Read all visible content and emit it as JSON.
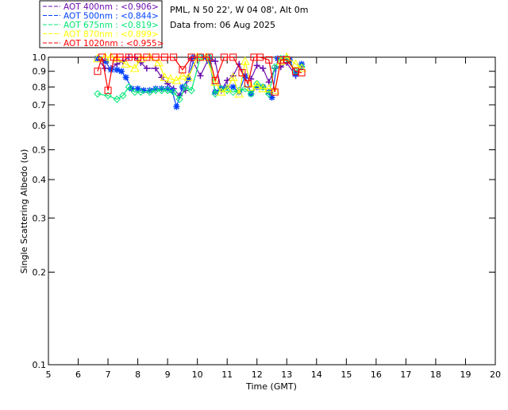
{
  "chart_data": {
    "type": "line",
    "title": "PML, N 50 22', W 04 08', Alt 0m",
    "subtitle": "Data from: 06 Aug 2025",
    "xlabel": "Time (GMT)",
    "ylabel": "Single Scattering Albedo (ω)",
    "xlim": [
      5,
      20
    ],
    "ylim": [
      0.1,
      1.0
    ],
    "yscale": "log",
    "xticks": [
      "5",
      "6",
      "7",
      "8",
      "9",
      "10",
      "11",
      "12",
      "13",
      "14",
      "15",
      "16",
      "17",
      "18",
      "19",
      "20"
    ],
    "yticks": [
      "1.0",
      "0.9",
      "0.8",
      "0.7",
      "0.6",
      "0.5",
      "0.4",
      "0.3",
      "0.2",
      "0.1"
    ],
    "legend_placement": "top-left",
    "series": [
      {
        "name": "AOT  400nm : <0.906>",
        "color": "#6a0dad",
        "marker": "plus",
        "x": [
          6.65,
          6.9,
          7.1,
          7.3,
          7.5,
          7.7,
          7.9,
          8.1,
          8.3,
          8.6,
          8.8,
          9.0,
          9.2,
          9.4,
          9.6,
          9.8,
          10.1,
          10.4,
          10.6,
          10.8,
          11.0,
          11.2,
          11.4,
          11.6,
          11.8,
          12.0,
          12.2,
          12.4,
          12.6,
          12.8,
          13.0,
          13.3,
          13.5
        ],
        "y": [
          0.99,
          0.92,
          0.92,
          0.95,
          0.97,
          1.0,
          1.0,
          0.96,
          0.92,
          0.92,
          0.86,
          0.82,
          0.79,
          0.75,
          0.78,
          0.99,
          0.87,
          1.0,
          0.97,
          0.78,
          0.84,
          0.87,
          0.95,
          0.86,
          0.85,
          0.94,
          0.92,
          0.83,
          0.92,
          0.93,
          0.96,
          0.87,
          0.93
        ]
      },
      {
        "name": "AOT  500nm : <0.844>",
        "color": "#0040ff",
        "marker": "star",
        "x": [
          6.65,
          6.9,
          7.1,
          7.3,
          7.45,
          7.6,
          7.8,
          8.0,
          8.2,
          8.4,
          8.6,
          8.8,
          9.0,
          9.15,
          9.3,
          9.5,
          9.7,
          9.9,
          10.2,
          10.4,
          10.6,
          10.8,
          11.0,
          11.2,
          11.4,
          11.6,
          11.8,
          12.0,
          12.2,
          12.4,
          12.5,
          12.7,
          12.9,
          13.1,
          13.3,
          13.5
        ],
        "y": [
          0.99,
          0.97,
          0.91,
          0.91,
          0.9,
          0.86,
          0.79,
          0.79,
          0.78,
          0.78,
          0.79,
          0.79,
          0.79,
          0.78,
          0.69,
          0.8,
          0.85,
          1.0,
          1.0,
          0.97,
          0.77,
          0.79,
          0.8,
          0.8,
          0.77,
          0.87,
          0.76,
          0.8,
          0.8,
          0.77,
          0.74,
          0.99,
          0.99,
          0.98,
          0.88,
          0.95
        ]
      },
      {
        "name": "AOT  675nm : <0.819>",
        "color": "#00e676",
        "marker": "diamond",
        "x": [
          6.65,
          7.0,
          7.3,
          7.5,
          7.7,
          7.9,
          8.1,
          8.4,
          8.6,
          8.8,
          9.0,
          9.2,
          9.4,
          9.6,
          9.8,
          10.1,
          10.4,
          10.6,
          10.8,
          11.0,
          11.2,
          11.4,
          11.6,
          11.8,
          12.0,
          12.2,
          12.4,
          12.6,
          12.8,
          13.0,
          13.3,
          13.5
        ],
        "y": [
          0.76,
          0.75,
          0.73,
          0.75,
          0.8,
          0.77,
          0.77,
          0.77,
          0.78,
          0.78,
          0.78,
          0.77,
          0.73,
          0.8,
          0.78,
          1.0,
          1.0,
          0.76,
          0.79,
          0.78,
          0.77,
          0.78,
          0.79,
          0.76,
          0.82,
          0.8,
          0.76,
          0.93,
          0.99,
          0.99,
          0.9,
          0.93
        ]
      },
      {
        "name": "AOT  870nm : <0.899>",
        "color": "#ffff00",
        "marker": "triangle",
        "x": [
          6.65,
          6.9,
          7.1,
          7.3,
          7.6,
          7.9,
          8.1,
          8.4,
          8.7,
          8.9,
          9.1,
          9.3,
          9.5,
          9.7,
          10.0,
          10.3,
          10.6,
          10.8,
          11.0,
          11.2,
          11.4,
          11.6,
          11.8,
          12.0,
          12.2,
          12.4,
          12.6,
          12.8,
          13.0,
          13.3,
          13.5
        ],
        "y": [
          0.99,
          1.0,
          1.0,
          0.99,
          0.95,
          0.92,
          0.99,
          1.0,
          0.96,
          0.86,
          0.85,
          0.84,
          0.87,
          0.86,
          1.0,
          1.0,
          0.83,
          0.77,
          0.79,
          0.86,
          0.76,
          0.97,
          0.8,
          0.81,
          0.79,
          0.79,
          0.78,
          0.97,
          1.0,
          0.95,
          0.92
        ]
      },
      {
        "name": "AOT 1020nm : <0.955>",
        "color": "#ff0000",
        "marker": "square",
        "x": [
          6.65,
          6.8,
          7.0,
          7.2,
          7.4,
          7.7,
          8.0,
          8.3,
          8.6,
          8.9,
          9.2,
          9.5,
          9.8,
          10.1,
          10.4,
          10.6,
          10.9,
          11.2,
          11.5,
          11.7,
          11.9,
          12.1,
          12.4,
          12.6,
          12.8,
          13.0,
          13.3,
          13.5
        ],
        "y": [
          0.9,
          1.0,
          0.78,
          1.0,
          1.0,
          1.0,
          1.0,
          1.0,
          1.0,
          1.0,
          1.0,
          0.91,
          1.0,
          1.0,
          1.0,
          0.84,
          1.0,
          1.0,
          0.89,
          0.82,
          1.0,
          1.0,
          0.98,
          0.77,
          0.98,
          0.98,
          0.9,
          0.89
        ]
      }
    ]
  }
}
